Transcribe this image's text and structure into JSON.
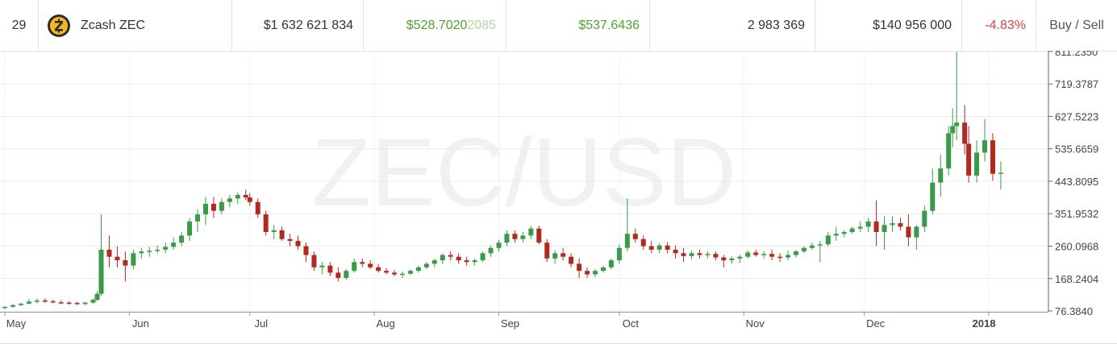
{
  "row": {
    "rank": "29",
    "name": "Zcash ZEC",
    "market_cap": "$1 632 621 834",
    "price_main": "$528.7020",
    "price_tail": "2085",
    "high": "$537.6436",
    "volume": "2 983 369",
    "total_volume": "$140 956 000",
    "change": "-4.83%",
    "action": "Buy / Sell"
  },
  "colors": {
    "up": "#3a9a4a",
    "down": "#b02a1f",
    "positive_text": "#53a02c",
    "negative_text": "#d34545"
  },
  "chart_data": {
    "type": "candlestick",
    "watermark": "ZEC/USD",
    "y_ticks": [
      "76.3840",
      "168.2404",
      "260.0968",
      "351.9532",
      "443.8095",
      "535.6659",
      "627.5223",
      "719.3787",
      "811.2350"
    ],
    "y_tick_values": [
      76.384,
      168.2404,
      260.0968,
      351.9532,
      443.8095,
      535.6659,
      627.5223,
      719.3787,
      811.235
    ],
    "ylim": [
      76.384,
      811.235
    ],
    "x_ticks": [
      "May",
      "Jun",
      "Jul",
      "Aug",
      "Sep",
      "Oct",
      "Nov",
      "Dec",
      "2018"
    ],
    "xlim": [
      "2017-05-01",
      "2018-01-19"
    ],
    "grid": true,
    "candles": [
      [
        "2017-05-01",
        86,
        90,
        82,
        88
      ],
      [
        "2017-05-03",
        88,
        95,
        86,
        93
      ],
      [
        "2017-05-05",
        93,
        100,
        90,
        97
      ],
      [
        "2017-05-07",
        97,
        110,
        95,
        103
      ],
      [
        "2017-05-09",
        103,
        112,
        98,
        106
      ],
      [
        "2017-05-11",
        106,
        112,
        100,
        104
      ],
      [
        "2017-05-13",
        104,
        108,
        98,
        101
      ],
      [
        "2017-05-15",
        101,
        106,
        96,
        100
      ],
      [
        "2017-05-17",
        100,
        104,
        95,
        99
      ],
      [
        "2017-05-19",
        99,
        103,
        94,
        96
      ],
      [
        "2017-05-21",
        96,
        102,
        93,
        100
      ],
      [
        "2017-05-23",
        100,
        112,
        96,
        108
      ],
      [
        "2017-05-24",
        108,
        132,
        105,
        125
      ],
      [
        "2017-05-25",
        125,
        350,
        120,
        250
      ],
      [
        "2017-05-27",
        250,
        290,
        200,
        230
      ],
      [
        "2017-05-29",
        230,
        260,
        200,
        220
      ],
      [
        "2017-05-31",
        220,
        245,
        160,
        205
      ],
      [
        "2017-06-02",
        205,
        250,
        195,
        240
      ],
      [
        "2017-06-04",
        240,
        255,
        225,
        245
      ],
      [
        "2017-06-06",
        245,
        258,
        230,
        247
      ],
      [
        "2017-06-08",
        247,
        262,
        240,
        250
      ],
      [
        "2017-06-10",
        250,
        270,
        240,
        258
      ],
      [
        "2017-06-12",
        258,
        285,
        250,
        270
      ],
      [
        "2017-06-14",
        270,
        300,
        260,
        290
      ],
      [
        "2017-06-16",
        290,
        340,
        275,
        330
      ],
      [
        "2017-06-18",
        330,
        365,
        300,
        350
      ],
      [
        "2017-06-20",
        350,
        400,
        320,
        380
      ],
      [
        "2017-06-22",
        380,
        400,
        340,
        360
      ],
      [
        "2017-06-24",
        360,
        395,
        350,
        385
      ],
      [
        "2017-06-26",
        385,
        405,
        370,
        395
      ],
      [
        "2017-06-28",
        395,
        412,
        380,
        405
      ],
      [
        "2017-06-30",
        405,
        420,
        390,
        398
      ],
      [
        "2017-07-01",
        398,
        410,
        375,
        385
      ],
      [
        "2017-07-03",
        385,
        395,
        340,
        350
      ],
      [
        "2017-07-05",
        350,
        360,
        290,
        300
      ],
      [
        "2017-07-07",
        300,
        320,
        280,
        305
      ],
      [
        "2017-07-09",
        305,
        315,
        275,
        280
      ],
      [
        "2017-07-11",
        280,
        295,
        260,
        275
      ],
      [
        "2017-07-13",
        275,
        290,
        250,
        260
      ],
      [
        "2017-07-15",
        260,
        270,
        215,
        235
      ],
      [
        "2017-07-17",
        235,
        245,
        190,
        200
      ],
      [
        "2017-07-19",
        200,
        215,
        180,
        205
      ],
      [
        "2017-07-21",
        205,
        215,
        175,
        185
      ],
      [
        "2017-07-23",
        185,
        200,
        160,
        170
      ],
      [
        "2017-07-25",
        170,
        195,
        165,
        190
      ],
      [
        "2017-07-27",
        190,
        225,
        185,
        215
      ],
      [
        "2017-07-29",
        215,
        225,
        200,
        210
      ],
      [
        "2017-07-31",
        210,
        220,
        195,
        200
      ],
      [
        "2017-08-02",
        200,
        210,
        185,
        190
      ],
      [
        "2017-08-04",
        190,
        198,
        180,
        185
      ],
      [
        "2017-08-06",
        185,
        192,
        175,
        180
      ],
      [
        "2017-08-08",
        180,
        188,
        170,
        182
      ],
      [
        "2017-08-10",
        182,
        195,
        178,
        190
      ],
      [
        "2017-08-12",
        190,
        205,
        185,
        200
      ],
      [
        "2017-08-14",
        200,
        215,
        195,
        210
      ],
      [
        "2017-08-16",
        210,
        225,
        200,
        220
      ],
      [
        "2017-08-18",
        220,
        240,
        210,
        235
      ],
      [
        "2017-08-20",
        235,
        245,
        220,
        230
      ],
      [
        "2017-08-22",
        230,
        240,
        210,
        220
      ],
      [
        "2017-08-24",
        220,
        230,
        205,
        215
      ],
      [
        "2017-08-26",
        215,
        225,
        205,
        220
      ],
      [
        "2017-08-28",
        220,
        245,
        215,
        240
      ],
      [
        "2017-08-30",
        240,
        262,
        230,
        255
      ],
      [
        "2017-09-01",
        255,
        278,
        245,
        270
      ],
      [
        "2017-09-03",
        270,
        305,
        260,
        295
      ],
      [
        "2017-09-05",
        295,
        305,
        270,
        280
      ],
      [
        "2017-09-07",
        280,
        300,
        270,
        290
      ],
      [
        "2017-09-09",
        290,
        318,
        280,
        310
      ],
      [
        "2017-09-11",
        310,
        318,
        265,
        270
      ],
      [
        "2017-09-13",
        270,
        280,
        215,
        225
      ],
      [
        "2017-09-15",
        225,
        248,
        210,
        240
      ],
      [
        "2017-09-17",
        240,
        255,
        220,
        230
      ],
      [
        "2017-09-19",
        230,
        240,
        200,
        210
      ],
      [
        "2017-09-21",
        210,
        225,
        170,
        190
      ],
      [
        "2017-09-23",
        190,
        200,
        170,
        180
      ],
      [
        "2017-09-25",
        180,
        195,
        172,
        190
      ],
      [
        "2017-09-27",
        190,
        205,
        185,
        200
      ],
      [
        "2017-09-29",
        200,
        225,
        195,
        220
      ],
      [
        "2017-10-01",
        220,
        265,
        210,
        255
      ],
      [
        "2017-10-03",
        255,
        395,
        245,
        295
      ],
      [
        "2017-10-05",
        295,
        310,
        270,
        280
      ],
      [
        "2017-10-07",
        280,
        290,
        250,
        260
      ],
      [
        "2017-10-09",
        260,
        275,
        240,
        250
      ],
      [
        "2017-10-11",
        250,
        268,
        240,
        262
      ],
      [
        "2017-10-13",
        262,
        272,
        240,
        250
      ],
      [
        "2017-10-15",
        250,
        262,
        225,
        240
      ],
      [
        "2017-10-17",
        240,
        255,
        215,
        232
      ],
      [
        "2017-10-19",
        232,
        248,
        222,
        240
      ],
      [
        "2017-10-21",
        240,
        250,
        225,
        235
      ],
      [
        "2017-10-23",
        235,
        245,
        225,
        238
      ],
      [
        "2017-10-25",
        238,
        245,
        220,
        228
      ],
      [
        "2017-10-27",
        228,
        235,
        200,
        220
      ],
      [
        "2017-10-29",
        220,
        232,
        210,
        225
      ],
      [
        "2017-10-31",
        225,
        235,
        212,
        230
      ],
      [
        "2017-11-02",
        230,
        248,
        225,
        242
      ],
      [
        "2017-11-04",
        242,
        250,
        230,
        235
      ],
      [
        "2017-11-06",
        235,
        246,
        225,
        238
      ],
      [
        "2017-11-08",
        238,
        250,
        220,
        230
      ],
      [
        "2017-11-10",
        230,
        240,
        215,
        228
      ],
      [
        "2017-11-12",
        228,
        248,
        220,
        235
      ],
      [
        "2017-11-14",
        235,
        250,
        228,
        245
      ],
      [
        "2017-11-16",
        245,
        260,
        240,
        255
      ],
      [
        "2017-11-18",
        255,
        270,
        250,
        262
      ],
      [
        "2017-11-20",
        262,
        275,
        215,
        265
      ],
      [
        "2017-11-22",
        265,
        300,
        260,
        290
      ],
      [
        "2017-11-24",
        290,
        315,
        275,
        295
      ],
      [
        "2017-11-26",
        295,
        305,
        285,
        300
      ],
      [
        "2017-11-28",
        300,
        315,
        295,
        310
      ],
      [
        "2017-11-30",
        310,
        330,
        300,
        315
      ],
      [
        "2017-12-02",
        315,
        340,
        300,
        330
      ],
      [
        "2017-12-04",
        330,
        390,
        260,
        300
      ],
      [
        "2017-12-06",
        300,
        345,
        250,
        320
      ],
      [
        "2017-12-08",
        320,
        345,
        300,
        325
      ],
      [
        "2017-12-10",
        325,
        340,
        305,
        315
      ],
      [
        "2017-12-12",
        315,
        350,
        260,
        285
      ],
      [
        "2017-12-14",
        285,
        320,
        250,
        315
      ],
      [
        "2017-12-16",
        315,
        375,
        300,
        360
      ],
      [
        "2017-12-18",
        360,
        480,
        350,
        440
      ],
      [
        "2017-12-20",
        440,
        520,
        400,
        480
      ],
      [
        "2017-12-22",
        480,
        600,
        460,
        580
      ],
      [
        "2017-12-23",
        580,
        650,
        540,
        600
      ],
      [
        "2017-12-24",
        600,
        811,
        560,
        610
      ],
      [
        "2017-12-26",
        610,
        660,
        520,
        550
      ],
      [
        "2017-12-27",
        550,
        600,
        440,
        460
      ],
      [
        "2017-12-29",
        460,
        560,
        440,
        525
      ],
      [
        "2017-12-31",
        525,
        620,
        500,
        560
      ],
      [
        "2018-01-02",
        560,
        580,
        445,
        465
      ],
      [
        "2018-01-04",
        465,
        500,
        420,
        468
      ]
    ]
  }
}
